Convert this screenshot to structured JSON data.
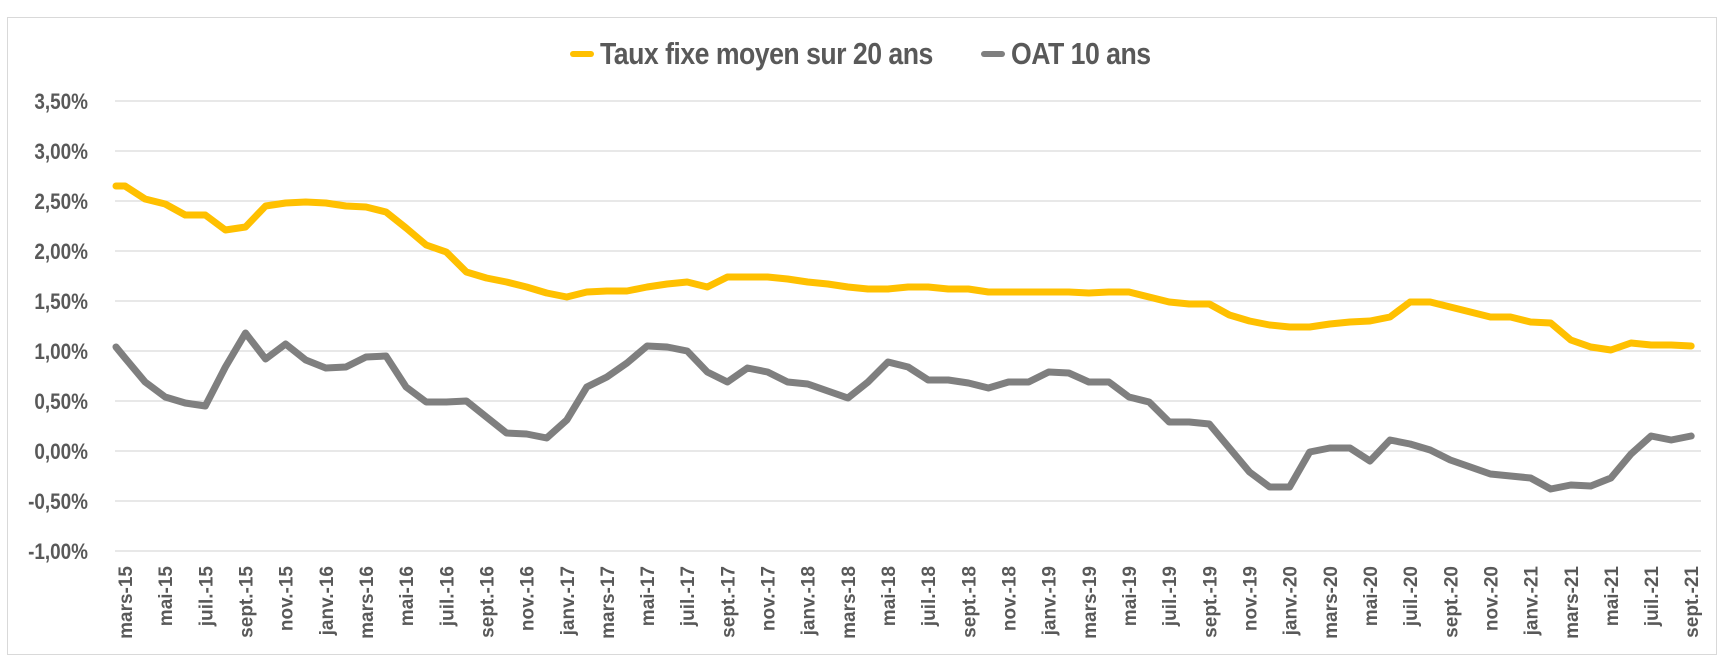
{
  "chart_data": {
    "type": "line",
    "title": "",
    "xlabel": "",
    "ylabel": "",
    "ylim": [
      -1.0,
      3.5
    ],
    "y_ticks": [
      "3,50%",
      "3,00%",
      "2,50%",
      "2,00%",
      "1,50%",
      "1,00%",
      "0,50%",
      "0,00%",
      "-0,50%",
      "-1,00%"
    ],
    "y_tick_values": [
      3.5,
      3.0,
      2.5,
      2.0,
      1.5,
      1.0,
      0.5,
      0.0,
      -0.5,
      -1.0
    ],
    "grid": true,
    "legend_position": "top",
    "x_tick_labels": [
      "mars-15",
      "mai-15",
      "juil.-15",
      "sept.-15",
      "nov.-15",
      "janv.-16",
      "mars-16",
      "mai-16",
      "juil.-16",
      "sept.-16",
      "nov.-16",
      "janv.-17",
      "mars-17",
      "mai-17",
      "juil.-17",
      "sept.-17",
      "nov.-17",
      "janv.-18",
      "mars-18",
      "mai-18",
      "juil.-18",
      "sept.-18",
      "nov.-18",
      "janv.-19",
      "mars-19",
      "mai-19",
      "juil.-19",
      "sept.-19",
      "nov.-19",
      "janv.-20",
      "mars-20",
      "mai-20",
      "juil.-20",
      "sept.-20",
      "nov.-20",
      "janv.-21",
      "mars-21",
      "mai-21",
      "juil.-21",
      "sept.-21"
    ],
    "x_range": [
      "mars-15",
      "sept.-21"
    ],
    "series": [
      {
        "name": "Taux fixe moyen sur 20 ans",
        "color": "#FFC000",
        "values": [
          2.65,
          2.65,
          2.52,
          2.47,
          2.36,
          2.36,
          2.21,
          2.24,
          2.45,
          2.48,
          2.49,
          2.48,
          2.45,
          2.44,
          2.39,
          2.23,
          2.06,
          1.99,
          1.79,
          1.73,
          1.69,
          1.64,
          1.58,
          1.54,
          1.59,
          1.6,
          1.6,
          1.64,
          1.67,
          1.69,
          1.64,
          1.74,
          1.74,
          1.74,
          1.72,
          1.69,
          1.67,
          1.64,
          1.62,
          1.62,
          1.64,
          1.64,
          1.62,
          1.62,
          1.59,
          1.59,
          1.59,
          1.59,
          1.59,
          1.58,
          1.59,
          1.59,
          1.54,
          1.49,
          1.47,
          1.47,
          1.36,
          1.3,
          1.26,
          1.24,
          1.24,
          1.27,
          1.29,
          1.3,
          1.34,
          1.49,
          1.49,
          1.44,
          1.39,
          1.34,
          1.34,
          1.29,
          1.28,
          1.11,
          1.04,
          1.01,
          1.08,
          1.06,
          1.06,
          1.05
        ]
      },
      {
        "name": "OAT 10 ans",
        "color": "#7F7F7F",
        "values": [
          1.04,
          0.93,
          0.69,
          0.54,
          0.48,
          0.45,
          0.84,
          1.18,
          0.92,
          1.07,
          0.91,
          0.83,
          0.84,
          0.94,
          0.95,
          0.64,
          0.49,
          0.49,
          0.5,
          0.34,
          0.18,
          0.17,
          0.13,
          0.31,
          0.64,
          0.74,
          0.88,
          1.05,
          1.04,
          1.0,
          0.79,
          0.69,
          0.83,
          0.79,
          0.69,
          0.67,
          0.6,
          0.53,
          0.69,
          0.89,
          0.84,
          0.71,
          0.71,
          0.68,
          0.63,
          0.69,
          0.69,
          0.79,
          0.78,
          0.69,
          0.69,
          0.54,
          0.49,
          0.29,
          0.29,
          0.27,
          0.03,
          -0.21,
          -0.36,
          -0.36,
          -0.01,
          0.03,
          0.03,
          -0.1,
          0.11,
          0.07,
          0.01,
          -0.09,
          -0.16,
          -0.23,
          -0.25,
          -0.27,
          -0.38,
          -0.34,
          -0.35,
          -0.27,
          -0.03,
          0.15,
          0.11,
          0.15
        ]
      }
    ]
  },
  "legend": {
    "items": [
      {
        "label": "Taux fixe moyen sur 20 ans",
        "color": "#FFC000"
      },
      {
        "label": "OAT 10 ans",
        "color": "#7F7F7F"
      }
    ]
  },
  "colors": {
    "text": "#595959",
    "grid": "#D9D9D9",
    "frame": "#D9D9D9"
  }
}
